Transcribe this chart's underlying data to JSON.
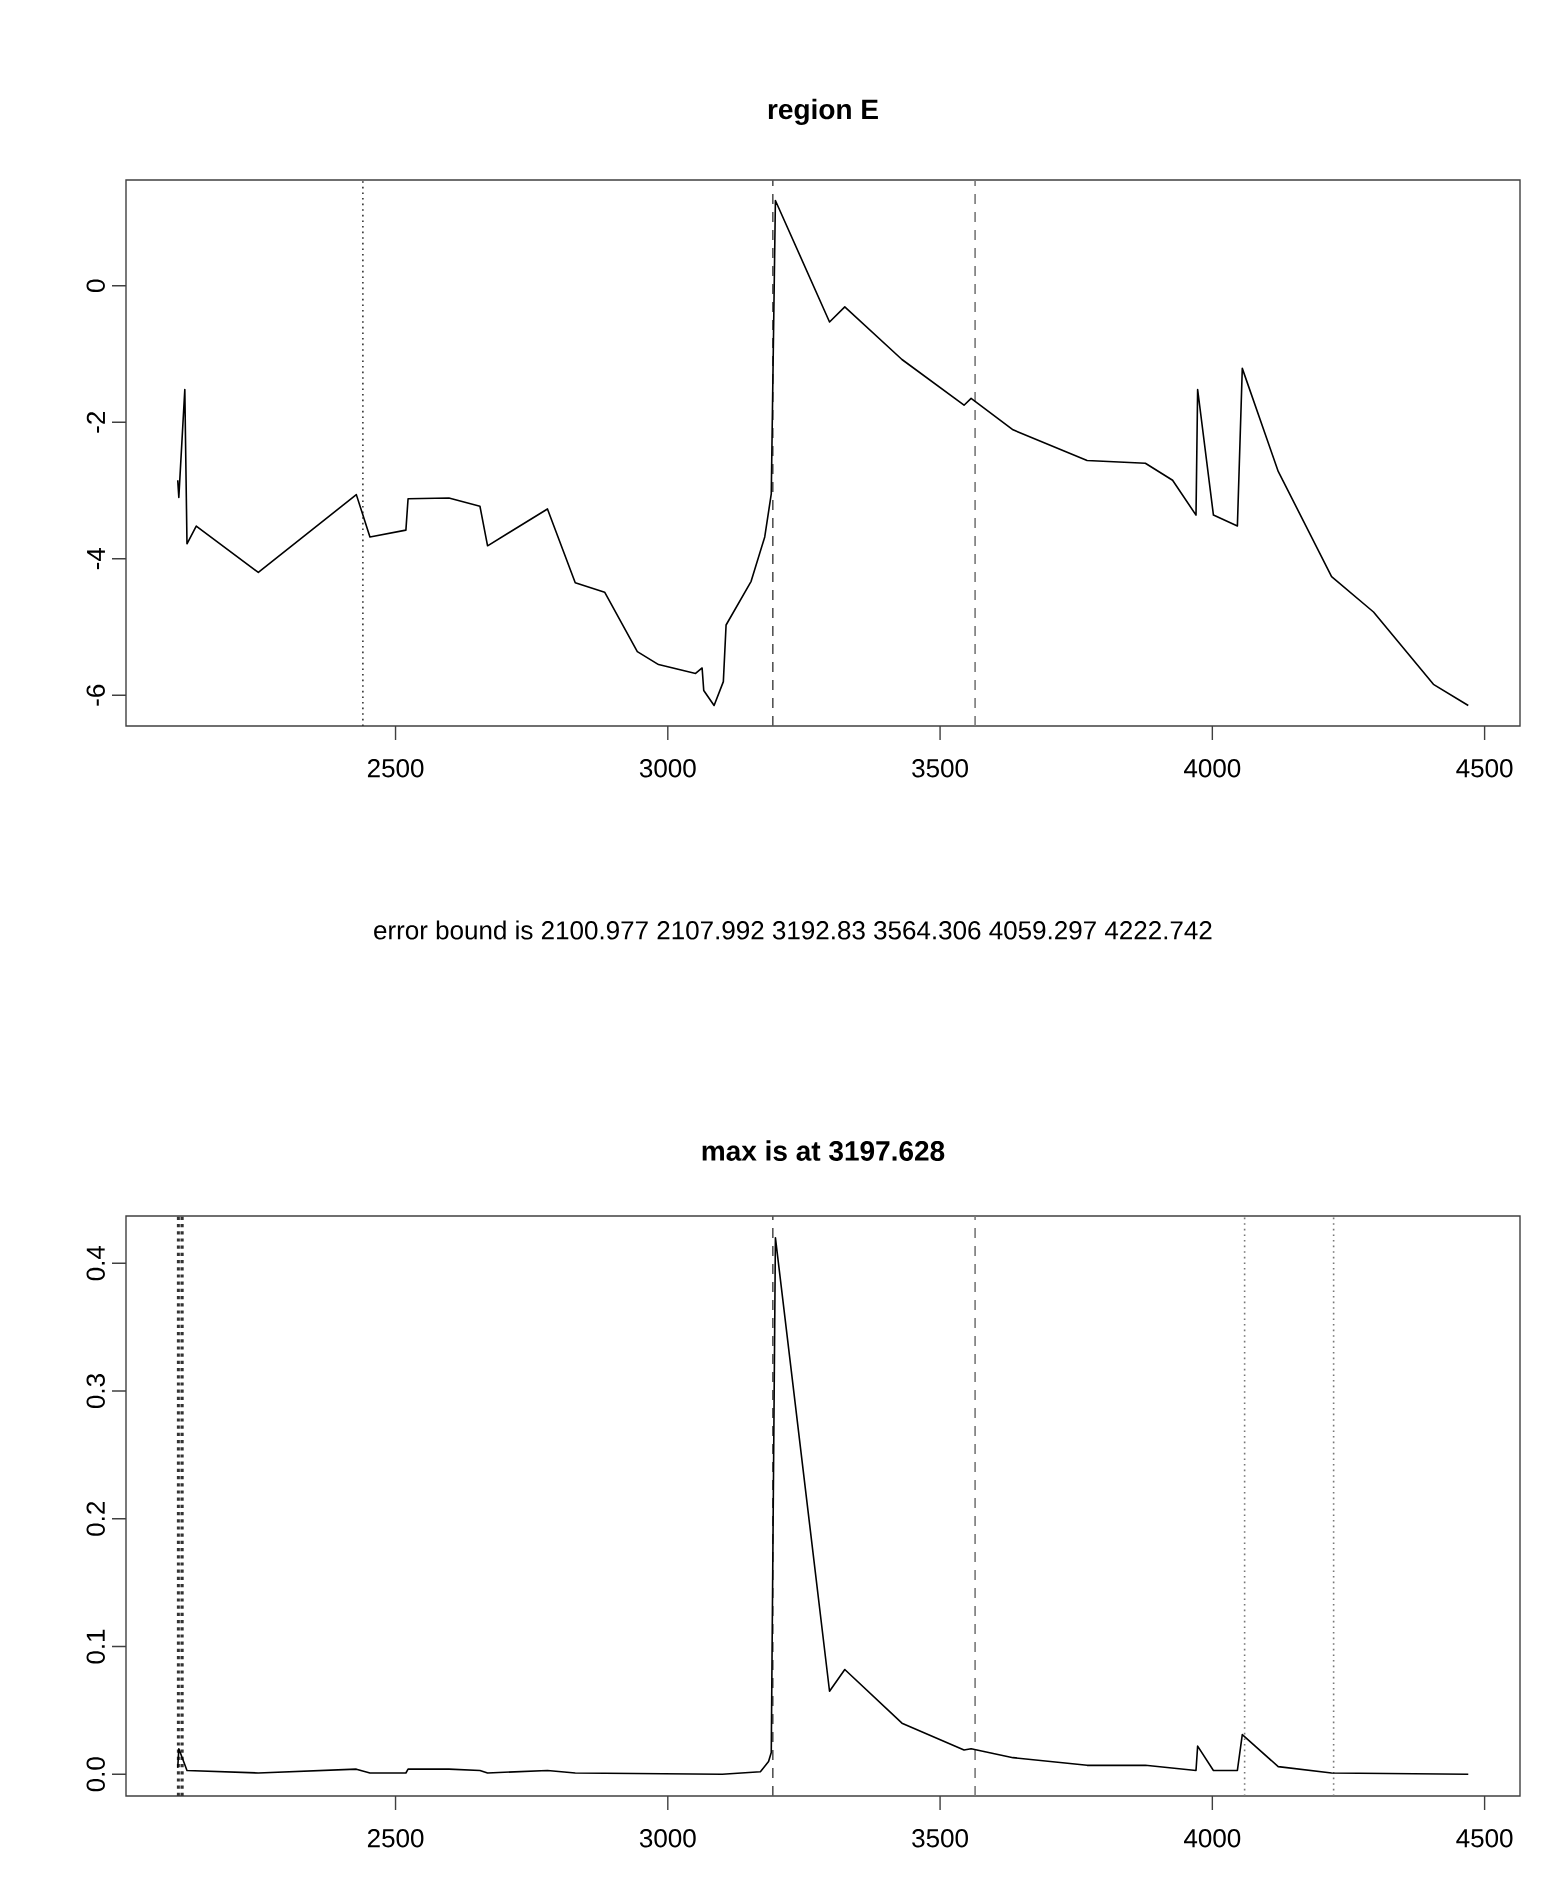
{
  "chart_data": [
    {
      "type": "line",
      "title": "region E",
      "x": [
        2100,
        2102,
        2113,
        2117,
        2134,
        2248,
        2428,
        2453,
        2519,
        2523,
        2598,
        2655,
        2669,
        2779,
        2830,
        2884,
        2944,
        2983,
        3051,
        3063,
        3066,
        3085,
        3102,
        3107,
        3153,
        3178,
        3190,
        3197.6,
        3297,
        3325,
        3430,
        3544,
        3557,
        3634,
        3770,
        3877,
        3927,
        3970,
        3973,
        4002,
        4046,
        4055,
        4121,
        4219,
        4296,
        4406,
        4470
      ],
      "series": [
        {
          "color": "#000000",
          "values": [
            -2.85,
            -3.1,
            -1.52,
            -3.78,
            -3.52,
            -4.2,
            -3.06,
            -3.68,
            -3.58,
            -3.12,
            -3.11,
            -3.23,
            -3.81,
            -3.27,
            -4.35,
            -4.49,
            -5.36,
            -5.55,
            -5.68,
            -5.6,
            -5.93,
            -6.15,
            -5.8,
            -4.97,
            -4.33,
            -3.68,
            -3.05,
            1.25,
            -0.53,
            -0.31,
            -1.08,
            -1.75,
            -1.65,
            -2.11,
            -2.56,
            -2.6,
            -2.85,
            -3.36,
            -1.52,
            -3.36,
            -3.52,
            -1.21,
            -2.72,
            -4.26,
            -4.78,
            -5.84,
            -6.15
          ]
        }
      ],
      "xlim": [
        2005,
        4565
      ],
      "ylim": [
        -6.45,
        1.55
      ],
      "xticks": [
        2500,
        3000,
        3500,
        4000,
        4500
      ],
      "yticks": [
        -6,
        -4,
        -2,
        0
      ],
      "grid": false,
      "marker": "none",
      "line_style": "solid",
      "ref_lines": [
        {
          "axis": "x",
          "value": 2440,
          "color": "#333333",
          "line_style": "dotted"
        },
        {
          "axis": "x",
          "value": 3192.83,
          "color": "#555555",
          "line_style": "dashed"
        },
        {
          "axis": "x",
          "value": 3564.306,
          "color": "#777777",
          "line_style": "dashed"
        }
      ],
      "annotations": [
        "error bound is   2100.977   2107.992   3192.83   3564.306   4059.297   4222.742"
      ]
    },
    {
      "type": "line",
      "title": "max is at   3197.628",
      "x": [
        2100,
        2102,
        2117,
        2248,
        2428,
        2453,
        2519,
        2523,
        2598,
        2655,
        2669,
        2779,
        2830,
        3100,
        3170,
        3185,
        3190,
        3197.6,
        3297,
        3325,
        3430,
        3544,
        3557,
        3634,
        3770,
        3877,
        3970,
        3973,
        4002,
        4046,
        4055,
        4121,
        4219,
        4470
      ],
      "series": [
        {
          "color": "#000000",
          "values": [
            0.005,
            0.02,
            0.003,
            0.001,
            0.004,
            0.001,
            0.001,
            0.004,
            0.004,
            0.003,
            0.001,
            0.003,
            0.001,
            0.0,
            0.002,
            0.01,
            0.017,
            0.42,
            0.065,
            0.082,
            0.04,
            0.019,
            0.02,
            0.013,
            0.007,
            0.007,
            0.003,
            0.022,
            0.003,
            0.003,
            0.031,
            0.006,
            0.001,
            0.0
          ]
        }
      ],
      "xlim": [
        2005,
        4565
      ],
      "ylim": [
        -0.017,
        0.437
      ],
      "xticks": [
        2500,
        3000,
        3500,
        4000,
        4500
      ],
      "yticks": [
        {
          "value": 0,
          "label": "0.0"
        },
        {
          "value": 0.1,
          "label": "0.1"
        },
        {
          "value": 0.2,
          "label": "0.2"
        },
        {
          "value": 0.3,
          "label": "0.3"
        },
        {
          "value": 0.4,
          "label": "0.4"
        }
      ],
      "grid": false,
      "marker": "none",
      "line_style": "solid",
      "ref_lines": [
        {
          "axis": "x",
          "value": 2100.977,
          "color": "#333333",
          "line_style": "dotted"
        },
        {
          "axis": "x",
          "value": 2107.992,
          "color": "#333333",
          "line_style": "dotted"
        },
        {
          "axis": "x",
          "value": 3192.83,
          "color": "#555555",
          "line_style": "dashed"
        },
        {
          "axis": "x",
          "value": 3564.306,
          "color": "#777777",
          "line_style": "dashed"
        },
        {
          "axis": "x",
          "value": 4059.297,
          "color": "#777777",
          "line_style": "dotted"
        },
        {
          "axis": "x",
          "value": 4222.742,
          "color": "#777777",
          "line_style": "dotted"
        }
      ]
    }
  ]
}
